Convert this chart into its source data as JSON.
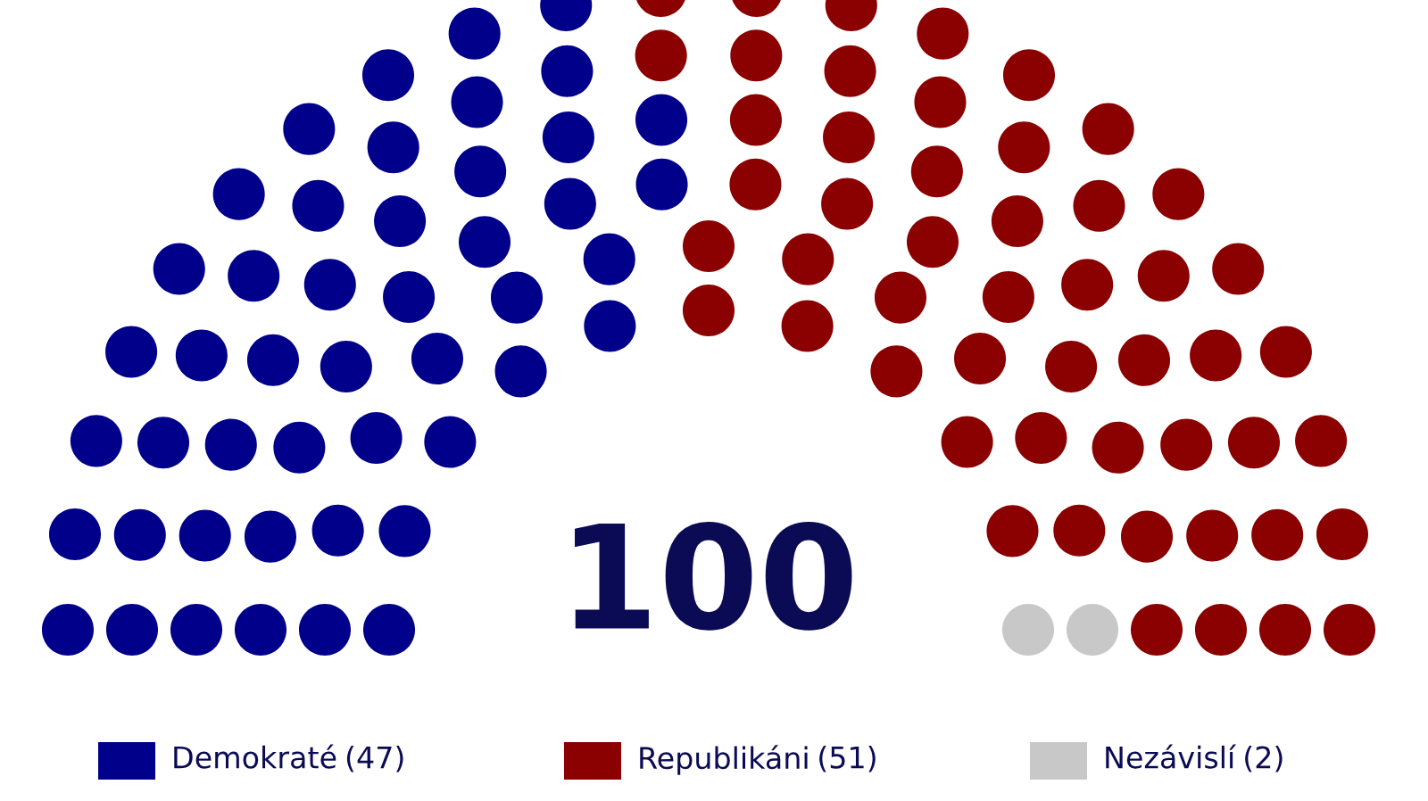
{
  "chart_data": {
    "type": "other",
    "categories": [
      "Demokraté",
      "Republikáni",
      "Nezávislí"
    ],
    "values": [
      47,
      51,
      2
    ],
    "value_labels": [
      "(47)",
      "(51)",
      "(2)"
    ],
    "colors": [
      "#00008b",
      "#8b0000",
      "#c8c8c8"
    ],
    "annotations": [
      "100"
    ]
  }
}
